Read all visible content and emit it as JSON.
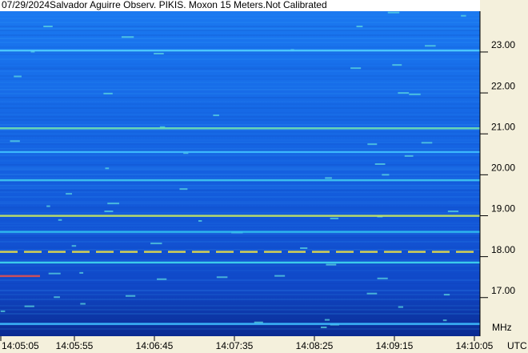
{
  "chart_data": {
    "type": "spectrogram",
    "title": "07/29/2024Salvador Aguirre Observ. PIKIS. Moxon 15 Meters.Not Calibrated",
    "y_unit": "MHz",
    "x_unit": "UTC",
    "ylim": [
      15.9,
      23.84
    ],
    "yticks": [
      {
        "value": 17,
        "label": "17.00"
      },
      {
        "value": 18,
        "label": "18.00"
      },
      {
        "value": 19,
        "label": "19.00"
      },
      {
        "value": 20,
        "label": "20.00"
      },
      {
        "value": 21,
        "label": "21.00"
      },
      {
        "value": 22,
        "label": "22.00"
      },
      {
        "value": 23,
        "label": "23.00"
      }
    ],
    "xticks": [
      "14:05:05",
      "14:05:55",
      "14:06:45",
      "14:07:35",
      "14:08:25",
      "14:09:15",
      "14:10:05"
    ],
    "signals": [
      {
        "freq": 17.96,
        "color": "#e8e048"
      },
      {
        "freq": 18.84,
        "color": "#c8e860"
      },
      {
        "freq": 20.98,
        "color": "#70e0b0"
      },
      {
        "freq": 17.7,
        "color": "#40d8f0"
      },
      {
        "freq": 18.45,
        "color": "#30c0f0"
      },
      {
        "freq": 19.71,
        "color": "#40c8f0"
      },
      {
        "freq": 22.88,
        "color": "#50d0ff"
      },
      {
        "freq": 20.4,
        "color": "#40c0ff"
      },
      {
        "freq": 16.2,
        "color": "#40c0ff"
      },
      {
        "freq": 17.37,
        "color": "#e05050"
      }
    ]
  }
}
